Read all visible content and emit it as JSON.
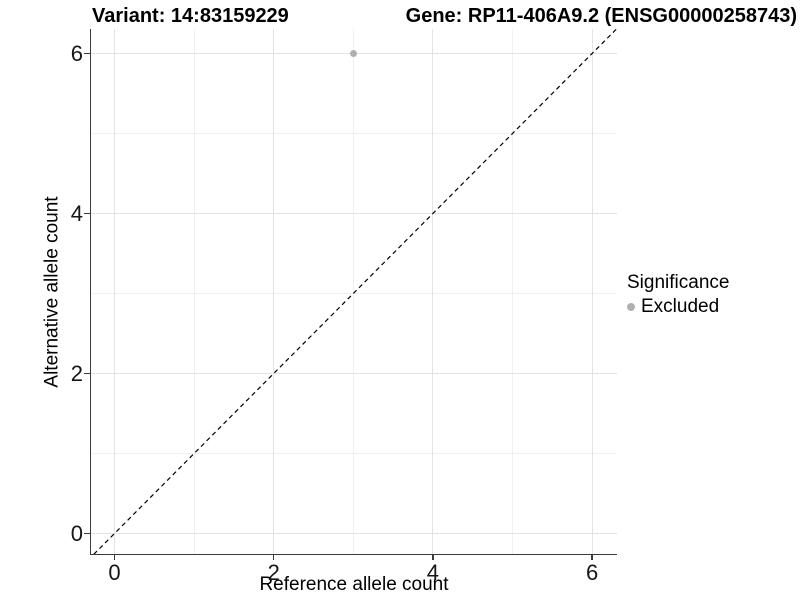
{
  "chart_data": {
    "type": "scatter",
    "title_left": "Variant: 14:83159229",
    "title_right": "Gene: RP11-406A9.2 (ENSG00000258743)",
    "xlabel": "Reference allele count",
    "ylabel": "Alternative allele count",
    "xlim": [
      -0.3,
      6.31
    ],
    "ylim": [
      -0.26,
      6.31
    ],
    "x_ticks": [
      0,
      2,
      4,
      6
    ],
    "y_ticks": [
      0,
      2,
      4,
      6
    ],
    "x_minor_gridlines": [
      1,
      3,
      5
    ],
    "y_minor_gridlines": [
      1,
      3,
      5
    ],
    "grid": true,
    "legend_position": "right",
    "reference_line": {
      "type": "identity y = x",
      "style": "dashed",
      "color": "#000000"
    },
    "series": [
      {
        "name": "Excluded",
        "color": "#b0b0b0",
        "points": [
          {
            "x": 3,
            "y": 6
          }
        ]
      }
    ],
    "legend": {
      "title": "Significance",
      "entries": [
        {
          "label": "Excluded",
          "color": "#b0b0b0"
        }
      ]
    },
    "colors": {
      "axis_line": "#3b3b3b",
      "grid_major": "#e3e3e3",
      "grid_minor": "#f0f0f0",
      "text": "#000000"
    }
  }
}
